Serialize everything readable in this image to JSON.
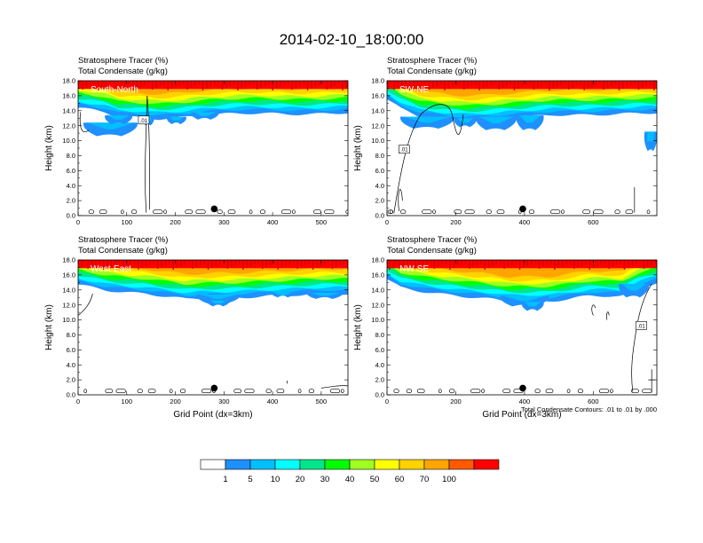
{
  "title": "2014-02-10_18:00:00",
  "panel_title_line1": "Stratosphere Tracer   (%)",
  "panel_title_line2": "Total Condensate   (g/kg)",
  "ylabel": "Height (km)",
  "xlabel": "Grid Point (dx=3km)",
  "contour_note": "Total Condensate Contours: .01 to .01 by .000",
  "contour_label": ".01",
  "colorbar": {
    "colors": [
      "#ffffff",
      "#1e90ff",
      "#00bfff",
      "#00ffff",
      "#00e68c",
      "#00ff00",
      "#a0ff20",
      "#ffff00",
      "#ffd200",
      "#ffa500",
      "#ff5a00",
      "#ff0000"
    ],
    "labels": [
      "1",
      "5",
      "10",
      "20",
      "30",
      "40",
      "50",
      "60",
      "70",
      "100"
    ]
  },
  "chart_data": [
    {
      "type": "heatmap",
      "panel": "South-North",
      "xlim": [
        0,
        555
      ],
      "ylim": [
        0,
        18
      ],
      "xticks": [
        "0",
        "100",
        "200",
        "300",
        "400",
        "500"
      ],
      "yticks": [
        "0.0",
        "2.0",
        "4.0",
        "6.0",
        "8.0",
        "10.0",
        "12.0",
        "14.0",
        "16.0",
        "18.0"
      ],
      "marker_x": 280,
      "show_xlabel": false
    },
    {
      "type": "heatmap",
      "panel": "SW-NE",
      "xlim": [
        0,
        785
      ],
      "ylim": [
        0,
        18
      ],
      "xticks": [
        "0",
        "200",
        "400",
        "600"
      ],
      "yticks": [
        "0.0",
        "2.0",
        "4.0",
        "6.0",
        "8.0",
        "10.0",
        "12.0",
        "14.0",
        "16.0",
        "18.0"
      ],
      "marker_x": 395,
      "show_xlabel": false
    },
    {
      "type": "heatmap",
      "panel": "West-East",
      "xlim": [
        0,
        555
      ],
      "ylim": [
        0,
        18
      ],
      "xticks": [
        "0",
        "100",
        "200",
        "300",
        "400",
        "500"
      ],
      "yticks": [
        "0.0",
        "2.0",
        "4.0",
        "6.0",
        "8.0",
        "10.0",
        "12.0",
        "14.0",
        "16.0",
        "18.0"
      ],
      "marker_x": 280,
      "show_xlabel": true
    },
    {
      "type": "heatmap",
      "panel": "NW-SE",
      "xlim": [
        0,
        785
      ],
      "ylim": [
        0,
        18
      ],
      "xticks": [
        "0",
        "200",
        "400",
        "600"
      ],
      "yticks": [
        "0.0",
        "2.0",
        "4.0",
        "6.0",
        "8.0",
        "10.0",
        "12.0",
        "14.0",
        "16.0",
        "18.0"
      ],
      "marker_x": 395,
      "show_xlabel": true
    }
  ]
}
